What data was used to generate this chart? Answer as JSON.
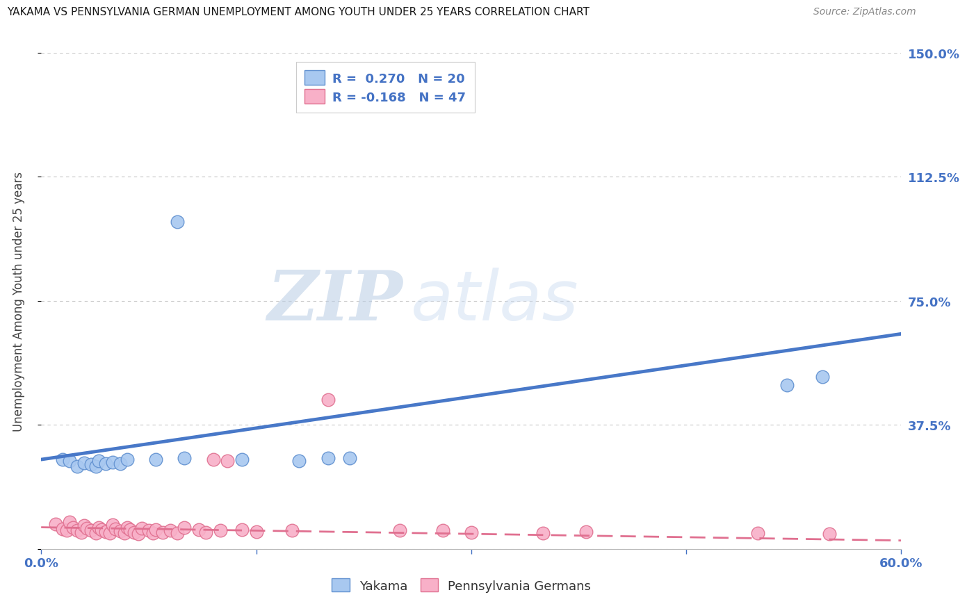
{
  "title": "YAKAMA VS PENNSYLVANIA GERMAN UNEMPLOYMENT AMONG YOUTH UNDER 25 YEARS CORRELATION CHART",
  "source": "Source: ZipAtlas.com",
  "ylabel_label": "Unemployment Among Youth under 25 years",
  "xlim": [
    0.0,
    0.6
  ],
  "ylim": [
    0.0,
    1.5
  ],
  "yticks": [
    0.0,
    0.375,
    0.75,
    1.125,
    1.5
  ],
  "ytick_labels": [
    "",
    "37.5%",
    "75.0%",
    "112.5%",
    "150.0%"
  ],
  "xticks": [
    0.0,
    0.15,
    0.3,
    0.45,
    0.6
  ],
  "xtick_labels": [
    "0.0%",
    "",
    "",
    "",
    "60.0%"
  ],
  "background_color": "#ffffff",
  "grid_color": "#c8c8c8",
  "watermark_zip": "ZIP",
  "watermark_atlas": "atlas",
  "yakama_color": "#a8c8f0",
  "yakama_edge": "#6090d0",
  "penn_color": "#f8b0c8",
  "penn_edge": "#e07090",
  "trendline_yakama_color": "#4878c8",
  "trendline_penn_color": "#e07090",
  "yakama_points": [
    [
      0.015,
      0.27
    ],
    [
      0.02,
      0.265
    ],
    [
      0.025,
      0.25
    ],
    [
      0.03,
      0.26
    ],
    [
      0.035,
      0.255
    ],
    [
      0.038,
      0.25
    ],
    [
      0.04,
      0.265
    ],
    [
      0.045,
      0.258
    ],
    [
      0.05,
      0.262
    ],
    [
      0.055,
      0.258
    ],
    [
      0.06,
      0.27
    ],
    [
      0.08,
      0.27
    ],
    [
      0.1,
      0.275
    ],
    [
      0.14,
      0.27
    ],
    [
      0.18,
      0.265
    ],
    [
      0.2,
      0.275
    ],
    [
      0.215,
      0.275
    ],
    [
      0.095,
      0.99
    ],
    [
      0.52,
      0.495
    ],
    [
      0.545,
      0.52
    ]
  ],
  "penn_points": [
    [
      0.01,
      0.075
    ],
    [
      0.015,
      0.06
    ],
    [
      0.018,
      0.055
    ],
    [
      0.02,
      0.08
    ],
    [
      0.022,
      0.065
    ],
    [
      0.025,
      0.055
    ],
    [
      0.028,
      0.05
    ],
    [
      0.03,
      0.07
    ],
    [
      0.032,
      0.062
    ],
    [
      0.035,
      0.055
    ],
    [
      0.038,
      0.048
    ],
    [
      0.04,
      0.065
    ],
    [
      0.042,
      0.058
    ],
    [
      0.045,
      0.052
    ],
    [
      0.048,
      0.048
    ],
    [
      0.05,
      0.072
    ],
    [
      0.052,
      0.06
    ],
    [
      0.055,
      0.053
    ],
    [
      0.058,
      0.048
    ],
    [
      0.06,
      0.065
    ],
    [
      0.062,
      0.057
    ],
    [
      0.065,
      0.05
    ],
    [
      0.068,
      0.045
    ],
    [
      0.07,
      0.062
    ],
    [
      0.075,
      0.055
    ],
    [
      0.078,
      0.048
    ],
    [
      0.08,
      0.058
    ],
    [
      0.085,
      0.05
    ],
    [
      0.09,
      0.055
    ],
    [
      0.095,
      0.048
    ],
    [
      0.1,
      0.065
    ],
    [
      0.11,
      0.058
    ],
    [
      0.115,
      0.05
    ],
    [
      0.12,
      0.27
    ],
    [
      0.125,
      0.055
    ],
    [
      0.13,
      0.265
    ],
    [
      0.14,
      0.058
    ],
    [
      0.15,
      0.052
    ],
    [
      0.175,
      0.055
    ],
    [
      0.2,
      0.452
    ],
    [
      0.25,
      0.055
    ],
    [
      0.28,
      0.055
    ],
    [
      0.3,
      0.05
    ],
    [
      0.35,
      0.048
    ],
    [
      0.38,
      0.052
    ],
    [
      0.5,
      0.048
    ],
    [
      0.55,
      0.045
    ]
  ]
}
